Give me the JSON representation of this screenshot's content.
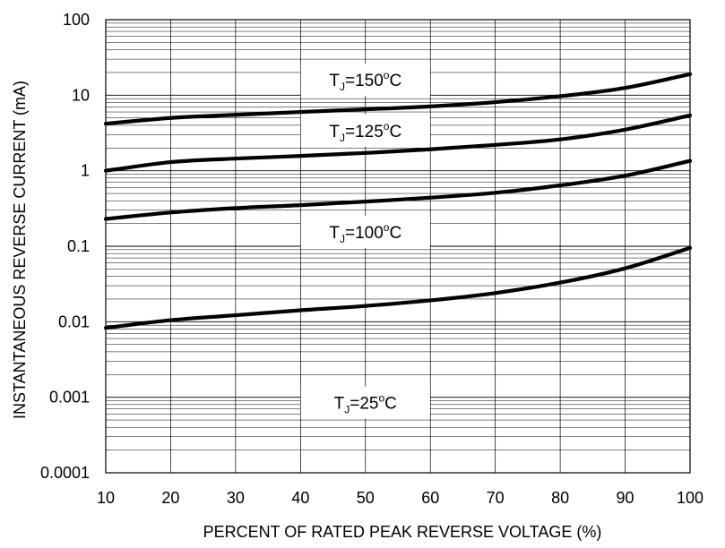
{
  "chart_data": {
    "type": "line",
    "title": "",
    "xlabel": "PERCENT OF RATED PEAK REVERSE VOLTAGE (%)",
    "ylabel": "INSTANTANEOUS REVERSE CURRENT (mA)",
    "xlim": [
      10,
      100
    ],
    "ylim": [
      0.0001,
      100
    ],
    "yscale": "log",
    "grid": true,
    "x_ticks": [
      "10",
      "20",
      "30",
      "40",
      "50",
      "60",
      "70",
      "80",
      "90",
      "100"
    ],
    "y_ticks": [
      "0.0001",
      "0.001",
      "0.01",
      "0.1",
      "1",
      "10",
      "100"
    ],
    "x": [
      10,
      20,
      30,
      40,
      50,
      60,
      70,
      80,
      90,
      100
    ],
    "series": [
      {
        "name": "TJ=150°C",
        "label_parts": {
          "main": "T",
          "sub": "J",
          "value": "=150",
          "sup": "o",
          "unit": "C"
        },
        "label_x": 50,
        "label_y": 16,
        "values": [
          4.2,
          5.0,
          5.5,
          6.0,
          6.5,
          7.1,
          8.1,
          9.7,
          12.5,
          19.0
        ]
      },
      {
        "name": "TJ=125°C",
        "label_parts": {
          "main": "T",
          "sub": "J",
          "value": "=125",
          "sup": "o",
          "unit": "C"
        },
        "label_x": 50,
        "label_y": 3.4,
        "values": [
          1.0,
          1.3,
          1.45,
          1.57,
          1.72,
          1.92,
          2.2,
          2.6,
          3.5,
          5.4
        ]
      },
      {
        "name": "TJ=100°C",
        "label_parts": {
          "main": "T",
          "sub": "J",
          "value": "=100",
          "sup": "o",
          "unit": "C"
        },
        "label_x": 50,
        "label_y": 0.155,
        "values": [
          0.23,
          0.28,
          0.32,
          0.35,
          0.39,
          0.44,
          0.51,
          0.64,
          0.86,
          1.35
        ]
      },
      {
        "name": "TJ=25°C",
        "label_parts": {
          "main": "T",
          "sub": "J",
          "value": "=25",
          "sup": "o",
          "unit": "C"
        },
        "label_x": 50,
        "label_y": 0.00085,
        "values": [
          0.0083,
          0.0105,
          0.0122,
          0.0142,
          0.0162,
          0.0192,
          0.024,
          0.033,
          0.051,
          0.095
        ]
      }
    ]
  }
}
